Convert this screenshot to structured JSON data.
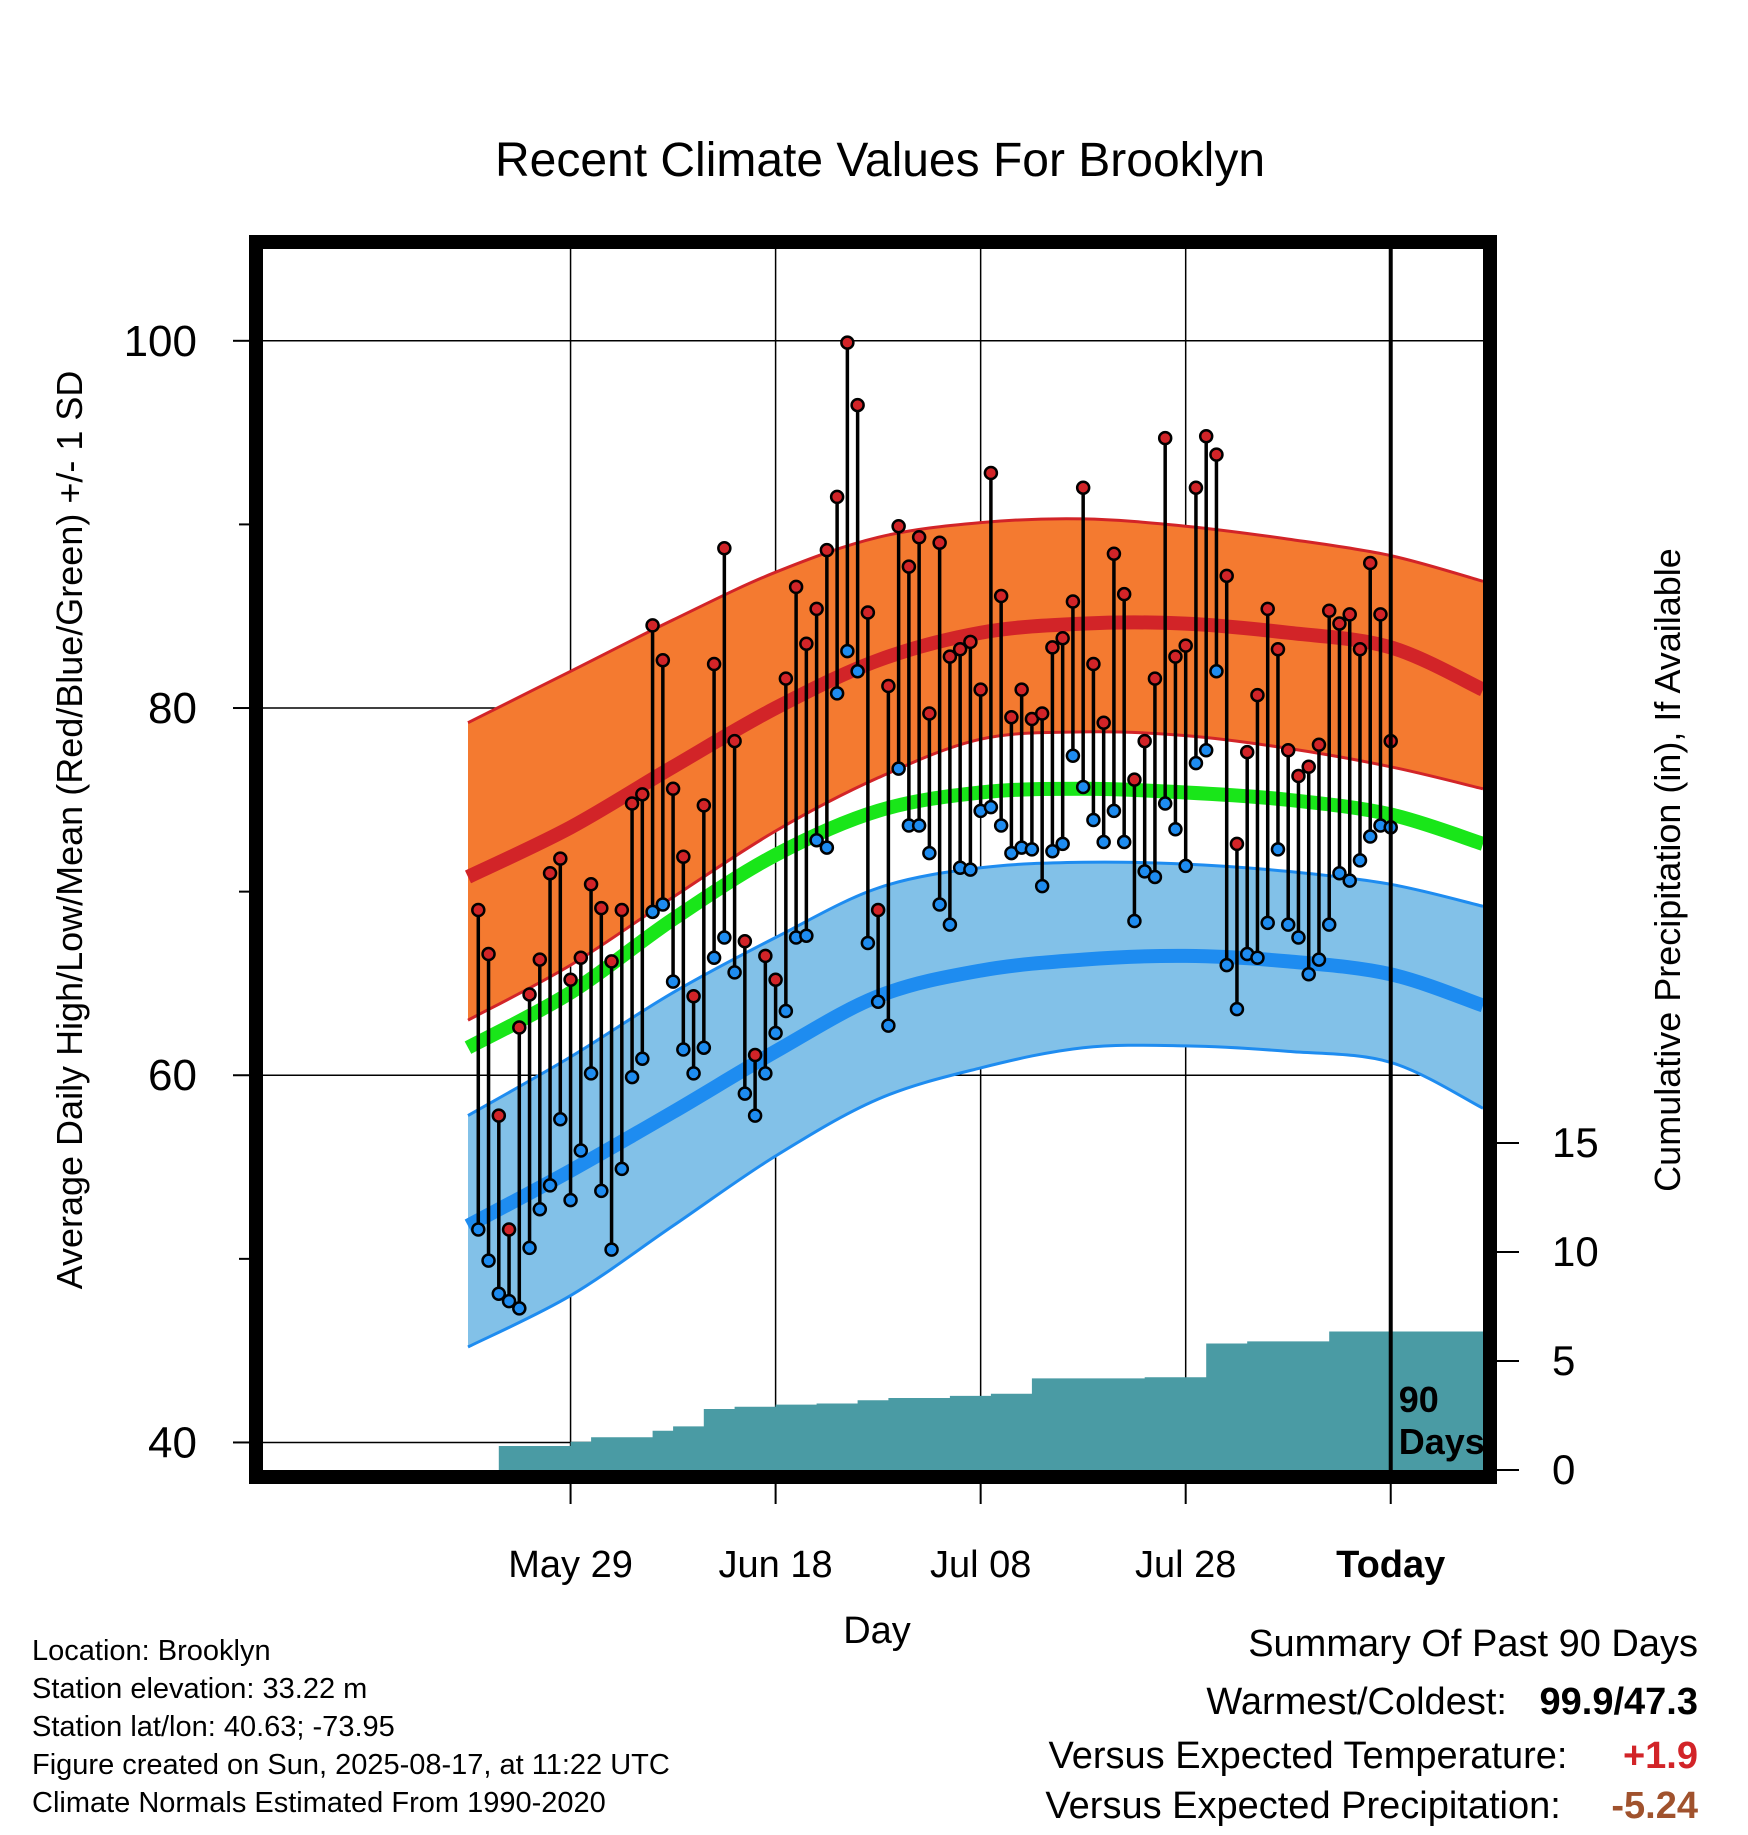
{
  "chart_data": {
    "type": "line",
    "title": "Recent Climate Values For Brooklyn",
    "xlabel": "Day",
    "ylabel": "Average Daily High/Low/Mean (Red/Blue/Green) +/- 1 SD",
    "y2label": "Cumulative Precipitation (in), If Available",
    "x_range_days_before_today": [
      -110,
      9
    ],
    "x_tick_labels": [
      "May 29",
      "Jun 18",
      "Jul 08",
      "Jul 28",
      "Today"
    ],
    "x_tick_days_before_today": [
      -80,
      -60,
      -40,
      -20,
      0
    ],
    "ylim": [
      38.5,
      105
    ],
    "y_ticks": [
      40,
      60,
      80,
      100
    ],
    "y_minor_ticks": [
      50,
      70,
      90
    ],
    "y2lim": [
      0,
      56
    ],
    "y2_ticks": [
      0,
      5,
      10,
      15
    ],
    "today_annotation": "90 Days",
    "normal_x_days_before_today": [
      -90,
      -80,
      -70,
      -60,
      -50,
      -40,
      -30,
      -20,
      -10,
      0,
      9
    ],
    "normal_high": [
      70.8,
      73.5,
      76.8,
      80,
      82.6,
      84.1,
      84.6,
      84.6,
      84.1,
      83.3,
      81
    ],
    "normal_high_upper": [
      79.2,
      82,
      84.8,
      87.4,
      89.3,
      90.1,
      90.3,
      89.9,
      89.2,
      88.3,
      86.9
    ],
    "normal_high_lower": [
      63,
      66,
      69.7,
      73.3,
      76.2,
      78.3,
      78.7,
      78.5,
      77.8,
      76.8,
      75.6
    ],
    "normal_mean": [
      61.5,
      64.5,
      68.5,
      72,
      74.4,
      75.4,
      75.6,
      75.4,
      75,
      74.2,
      72.6
    ],
    "normal_low": [
      51.8,
      54.8,
      58,
      61.3,
      64.3,
      65.7,
      66.3,
      66.5,
      66.2,
      65.5,
      63.8
    ],
    "normal_low_upper": [
      57.8,
      61,
      64.5,
      67.5,
      70.2,
      71.3,
      71.6,
      71.5,
      71.1,
      70.4,
      69.2
    ],
    "normal_low_lower": [
      45.2,
      48,
      51.8,
      55.6,
      58.7,
      60.4,
      61.5,
      61.6,
      61.3,
      60.7,
      58.2
    ],
    "daily_high": [
      69,
      66.6,
      57.8,
      51.6,
      62.6,
      64.4,
      66.3,
      71,
      71.8,
      65.2,
      66.4,
      70.4,
      69.1,
      66.2,
      69,
      74.8,
      75.3,
      84.5,
      82.6,
      75.6,
      71.9,
      64.3,
      74.7,
      82.4,
      88.7,
      78.2,
      67.3,
      61.1,
      66.5,
      65.2,
      81.6,
      86.6,
      83.5,
      85.4,
      88.6,
      91.5,
      99.9,
      96.5,
      85.2,
      69,
      81.2,
      89.9,
      87.7,
      89.3,
      79.7,
      89,
      82.8,
      83.2,
      83.6,
      81,
      92.8,
      86.1,
      79.5,
      81,
      79.4,
      79.7,
      83.3,
      83.8,
      85.8,
      92,
      82.4,
      79.2,
      88.4,
      86.2,
      76.1,
      78.2,
      81.6,
      94.7,
      82.8,
      83.4,
      92,
      94.8,
      93.8,
      87.2,
      72.6,
      77.6,
      80.7,
      85.4,
      83.2,
      77.7,
      76.3,
      76.8,
      78,
      85.3,
      84.6,
      85.1,
      83.2,
      87.9,
      85.1,
      78.2
    ],
    "daily_low": [
      51.6,
      49.9,
      48.1,
      47.7,
      47.3,
      50.6,
      52.7,
      54,
      57.6,
      53.2,
      55.9,
      60.1,
      53.7,
      50.5,
      54.9,
      59.9,
      60.9,
      68.9,
      69.3,
      65.1,
      61.4,
      60.1,
      61.5,
      66.4,
      67.5,
      65.6,
      59,
      57.8,
      60.1,
      62.3,
      63.5,
      67.5,
      67.6,
      72.8,
      72.4,
      80.8,
      83.1,
      82,
      67.2,
      64,
      62.7,
      76.7,
      73.6,
      73.6,
      72.1,
      69.3,
      68.2,
      71.3,
      71.2,
      74.4,
      74.6,
      73.6,
      72.1,
      72.4,
      72.3,
      70.3,
      72.2,
      72.6,
      77.4,
      75.7,
      73.9,
      72.7,
      74.4,
      72.7,
      68.4,
      71.1,
      70.8,
      74.8,
      73.4,
      71.4,
      77,
      77.7,
      82,
      66,
      63.6,
      66.6,
      66.4,
      68.3,
      72.3,
      68.2,
      67.5,
      65.5,
      66.3,
      68.2,
      71,
      70.6,
      71.7,
      73,
      73.6,
      73.5
    ],
    "precip_steps": [
      [
        -89,
        -87,
        0
      ],
      [
        -87,
        -80,
        1.1
      ],
      [
        -80,
        -78,
        1.3
      ],
      [
        -78,
        -72,
        1.5
      ],
      [
        -72,
        -70,
        1.8
      ],
      [
        -70,
        -67,
        2
      ],
      [
        -67,
        -64,
        2.8
      ],
      [
        -64,
        -60,
        2.9
      ],
      [
        -60,
        -56,
        3
      ],
      [
        -56,
        -52,
        3.05
      ],
      [
        -52,
        -49,
        3.2
      ],
      [
        -49,
        -43,
        3.3
      ],
      [
        -43,
        -39,
        3.4
      ],
      [
        -39,
        -35,
        3.5
      ],
      [
        -35,
        -24,
        4.2
      ],
      [
        -24,
        -18,
        4.25
      ],
      [
        -18,
        -14,
        5.8
      ],
      [
        -14,
        -6,
        5.9
      ],
      [
        -6,
        -2,
        6.35
      ],
      [
        -2,
        9,
        6.35
      ]
    ]
  },
  "footer": {
    "location": "Location: Brooklyn",
    "elevation": "Station elevation: 33.22 m",
    "latlon": "Station lat/lon: 40.63; -73.95",
    "created": "Figure created on Sun, 2025-08-17, at 11:22 UTC",
    "normals": "Climate Normals Estimated From 1990-2020"
  },
  "summary": {
    "title": "Summary Of Past 90 Days",
    "warm_cold_label": "Warmest/Coldest:",
    "warm_cold_value": "99.9/47.3",
    "temp_label": "Versus Expected Temperature:",
    "temp_value": "+1.9",
    "precip_label": "Versus Expected Precipitation:",
    "precip_value": "-5.24"
  },
  "colors": {
    "high_band": "#f47a30",
    "high_line": "#d22428",
    "mean_line": "#19e619",
    "low_band": "#82c1e8",
    "low_line": "#1e8cf0",
    "precip_fill": "#4a9ba4",
    "temp_value": "#d22428",
    "precip_value": "#a0522d"
  }
}
